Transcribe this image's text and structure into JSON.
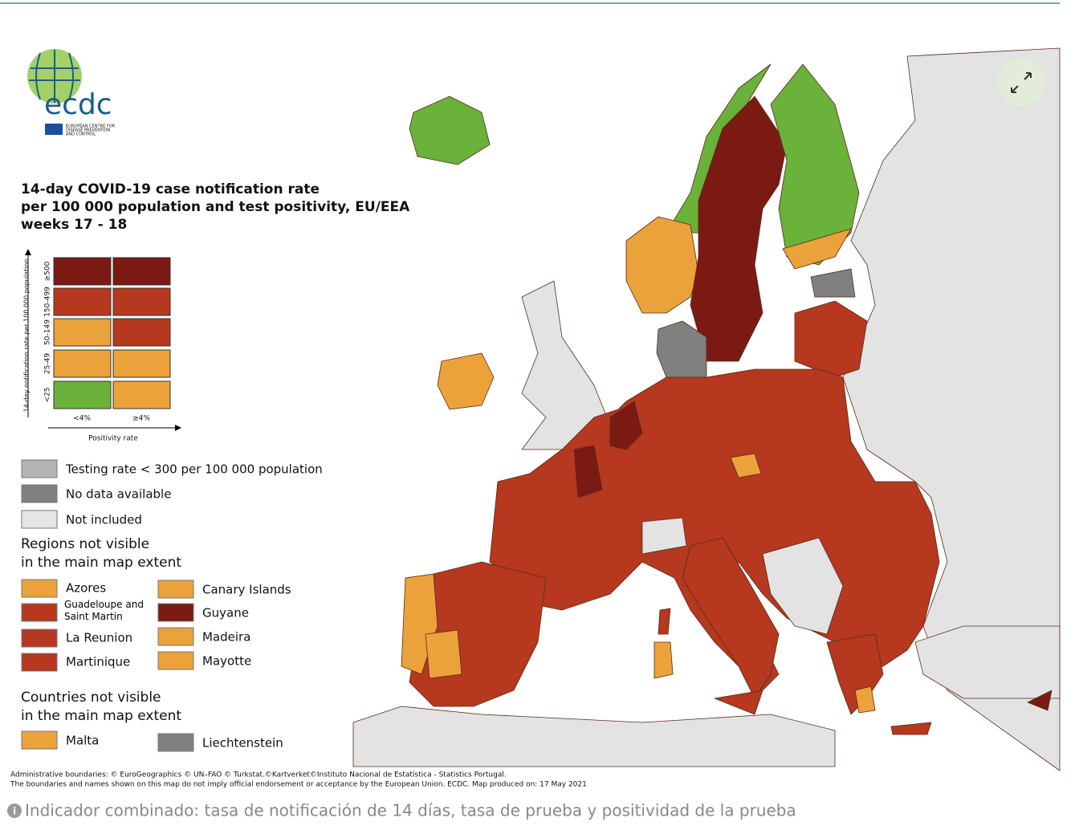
{
  "logo": {
    "name": "ecdc",
    "subtitle": [
      "EUROPEAN CENTRE FOR",
      "DISEASE PREVENTION",
      "AND CONTROL"
    ]
  },
  "legend": {
    "title": [
      "14-day COVID-19 case notification rate",
      "per 100 000 population and test positivity, EU/EEA",
      "weeks 17 - 18"
    ],
    "matrix": {
      "y_label": "14-day notification rate per 100 000 population",
      "rows": [
        "≥500",
        "150-499",
        "50-149",
        "25-49",
        "<25"
      ],
      "columns": [
        "<4%",
        "≥4%"
      ],
      "x_label": "Positivity rate"
    },
    "categories": [
      "Testing rate < 300 per 100 000 population",
      "No data available",
      "Not included"
    ],
    "regions_heading": [
      "Regions not visible",
      "in the main map extent"
    ],
    "regions": [
      "Azores",
      "Guadeloupe and Saint Martin",
      "La Reunion",
      "Martinique",
      "Canary Islands",
      "Guyane",
      "Madeira",
      "Mayotte"
    ],
    "countries_heading": [
      "Countries not visible",
      "in the main map extent"
    ],
    "countries": [
      "Malta",
      "Liechtenstein"
    ]
  },
  "footer": [
    "Administrative boundaries: © EuroGeographics © UN–FAO © Turkstat.©Kartverket©Instituto Nacional de Estatística - Statistics Portugal.",
    "The boundaries and names shown on this map do not imply official endorsement or acceptance by the European Union. ECDC. Map produced on: 17 May 2021"
  ],
  "caption": "Indicador combinado: tasa de notificación de 14 días, tasa de prueba y positividad de la prueba"
}
